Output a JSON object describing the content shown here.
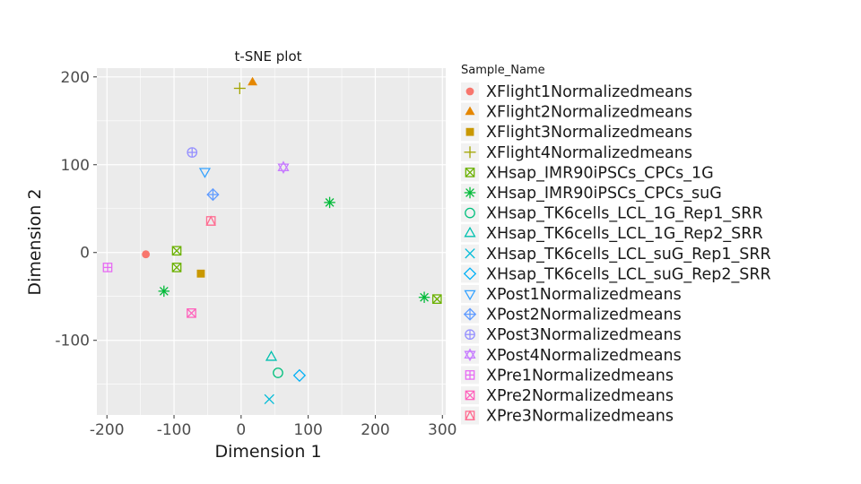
{
  "chart_data": {
    "type": "scatter",
    "title": "t-SNE plot",
    "xlabel": "Dimension 1",
    "ylabel": "Dimension 2",
    "xlim": [
      -215,
      305
    ],
    "ylim": [
      -185,
      210
    ],
    "xticks": [
      -200,
      -100,
      0,
      100,
      200,
      300
    ],
    "yticks": [
      -100,
      0,
      100,
      200
    ],
    "xtick_labels": [
      "-200",
      "-100",
      "0",
      "100",
      "200",
      "300"
    ],
    "ytick_labels": [
      "-100",
      "0",
      "100",
      "200"
    ],
    "grid": true,
    "legend_title": "Sample_Name",
    "legend_position": "right",
    "series": [
      {
        "name": "XFlight1Normalizedmeans",
        "color": "#F8766D",
        "shape": "circle-filled",
        "points": [
          [
            -142,
            -2
          ]
        ]
      },
      {
        "name": "XFlight2Normalizedmeans",
        "color": "#E58700",
        "shape": "triangle-filled",
        "points": [
          [
            17,
            194
          ]
        ]
      },
      {
        "name": "XFlight3Normalizedmeans",
        "color": "#C99800",
        "shape": "square-filled",
        "points": [
          [
            -60,
            -24
          ]
        ]
      },
      {
        "name": "XFlight4Normalizedmeans",
        "color": "#A3A500",
        "shape": "plus",
        "points": [
          [
            -2,
            187
          ]
        ]
      },
      {
        "name": "XHsap_IMR90iPSCs_CPCs_1G",
        "color": "#6BB100",
        "shape": "square-cross",
        "points": [
          [
            -96,
            2
          ],
          [
            -96,
            -17
          ],
          [
            292,
            -53
          ]
        ]
      },
      {
        "name": "XHsap_IMR90iPSCs_CPCs_suG",
        "color": "#00BA38",
        "shape": "asterisk",
        "points": [
          [
            132,
            57
          ],
          [
            -115,
            -44
          ],
          [
            273,
            -51
          ]
        ]
      },
      {
        "name": "XHsap_TK6cells_LCL_1G_Rep1_SRR",
        "color": "#00BF7D",
        "shape": "circle-open",
        "points": [
          [
            55,
            -137
          ]
        ]
      },
      {
        "name": "XHsap_TK6cells_LCL_1G_Rep2_SRR",
        "color": "#00C0AF",
        "shape": "triangle-open",
        "points": [
          [
            45,
            -119
          ]
        ]
      },
      {
        "name": "XHsap_TK6cells_LCL_suG_Rep1_SRR",
        "color": "#00BCD8",
        "shape": "cross",
        "points": [
          [
            42,
            -167
          ]
        ]
      },
      {
        "name": "XHsap_TK6cells_LCL_suG_Rep2_SRR",
        "color": "#00B0F6",
        "shape": "diamond-open",
        "points": [
          [
            87,
            -140
          ]
        ]
      },
      {
        "name": "XPost1Normalizedmeans",
        "color": "#35A2FF",
        "shape": "triangle-down-open",
        "points": [
          [
            -54,
            92
          ]
        ]
      },
      {
        "name": "XPost2Normalizedmeans",
        "color": "#619CFF",
        "shape": "diamond-plus",
        "points": [
          [
            -42,
            66
          ]
        ]
      },
      {
        "name": "XPost3Normalizedmeans",
        "color": "#9590FF",
        "shape": "circle-plus",
        "points": [
          [
            -73,
            114
          ]
        ]
      },
      {
        "name": "XPost4Normalizedmeans",
        "color": "#C77CFF",
        "shape": "star-of-david",
        "points": [
          [
            63,
            97
          ]
        ]
      },
      {
        "name": "XPre1Normalizedmeans",
        "color": "#E76BF3",
        "shape": "square-plus",
        "points": [
          [
            -199,
            -17
          ]
        ]
      },
      {
        "name": "XPre2Normalizedmeans",
        "color": "#FF62BC",
        "shape": "square-x",
        "points": [
          [
            -74,
            -69
          ]
        ]
      },
      {
        "name": "XPre3Normalizedmeans",
        "color": "#FF6C91",
        "shape": "square-triangle",
        "points": [
          [
            -45,
            36
          ]
        ]
      }
    ]
  }
}
